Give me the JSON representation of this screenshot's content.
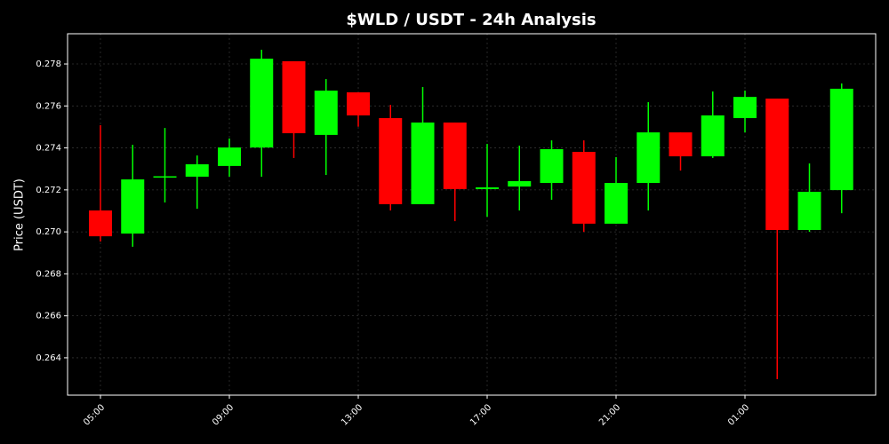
{
  "chart_data": {
    "type": "candlestick",
    "title": "$WLD / USDT - 24h Analysis",
    "y_label": "Price (USDT)",
    "categories": [
      "05:00",
      null,
      null,
      null,
      "09:00",
      null,
      null,
      null,
      "13:00",
      null,
      null,
      null,
      "17:00",
      null,
      null,
      null,
      "21:00",
      null,
      null,
      null,
      "01:00",
      null,
      null,
      null
    ],
    "open": [
      0.27102,
      0.26992,
      0.2726,
      0.27263,
      0.27314,
      0.27402,
      0.27813,
      0.27462,
      0.27665,
      0.27542,
      0.27132,
      0.27521,
      0.27204,
      0.27216,
      0.27233,
      0.27381,
      0.27039,
      0.27233,
      0.27474,
      0.2736,
      0.27542,
      0.27635,
      0.27009,
      0.27199
    ],
    "high": [
      0.27508,
      0.27415,
      0.27495,
      0.27364,
      0.27445,
      0.27868,
      0.27813,
      0.27728,
      0.27665,
      0.27605,
      0.2769,
      0.27521,
      0.27419,
      0.27411,
      0.27436,
      0.27436,
      0.27356,
      0.27618,
      0.27474,
      0.27669,
      0.27673,
      0.27635,
      0.27326,
      0.27707
    ],
    "low": [
      0.26954,
      0.26929,
      0.2714,
      0.2711,
      0.27263,
      0.27263,
      0.27352,
      0.27271,
      0.27501,
      0.27102,
      0.27132,
      0.27051,
      0.27072,
      0.27102,
      0.27153,
      0.27,
      0.27039,
      0.27102,
      0.27292,
      0.27352,
      0.27474,
      0.26298,
      0.27,
      0.27089
    ],
    "close": [
      0.26979,
      0.2725,
      0.27265,
      0.27322,
      0.27402,
      0.27825,
      0.2747,
      0.27673,
      0.27555,
      0.27132,
      0.27521,
      0.27204,
      0.27212,
      0.27242,
      0.27394,
      0.27039,
      0.27233,
      0.27474,
      0.2736,
      0.27555,
      0.27643,
      0.27009,
      0.27191,
      0.27682
    ],
    "up_color": "#00ff00",
    "down_color": "#ff0000",
    "ylim": [
      0.26222,
      0.27944
    ],
    "yticks": [
      0.264,
      0.266,
      0.268,
      {
        "value": 0.27,
        "label": "0.270"
      },
      0.272,
      0.274,
      0.276,
      0.278
    ],
    "grid": true
  }
}
